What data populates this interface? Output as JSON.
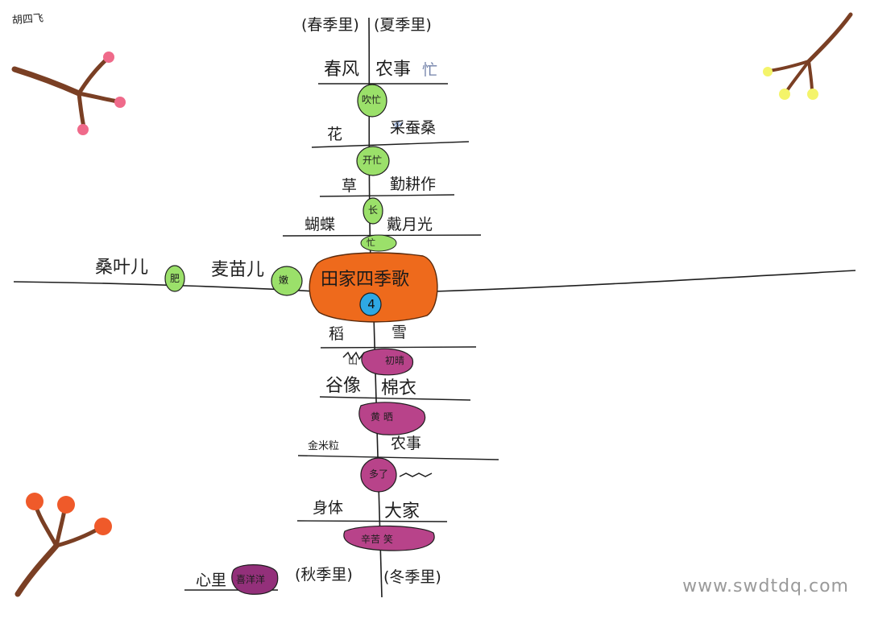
{
  "author": "胡四飞",
  "center": {
    "title": "田家四季歌",
    "number": "4"
  },
  "season_headers": {
    "spring": "(春季里)",
    "summer": "(夏季里)",
    "autumn": "(秋季里)",
    "winter": "(冬季里)"
  },
  "upper": {
    "row1": {
      "left": "春风",
      "right": "农事",
      "mark": "忙"
    },
    "blob1": "吹忙",
    "row2": {
      "left": "花",
      "right": "采蚕桑"
    },
    "blob2": "开忙",
    "row3": {
      "left": "草",
      "right": "勤耕作"
    },
    "blob3": "长",
    "row4": {
      "left": "蝴蝶",
      "right": "戴月光"
    },
    "blob4": "忙"
  },
  "horizontal": {
    "item1": {
      "text": "桑叶儿",
      "blob": "肥"
    },
    "item2": {
      "text": "麦苗儿",
      "blob": "嫩"
    }
  },
  "lower": {
    "row1": {
      "left": "稻",
      "right": "雪"
    },
    "blob1": {
      "left": "山",
      "right": "初晴"
    },
    "row2": {
      "left": "谷像",
      "right": "棉衣"
    },
    "blob2": "黄 晒",
    "row3": {
      "left": "金米粒",
      "right": "农事"
    },
    "blob3": "多了",
    "row4": {
      "left": "身体",
      "right": "大家"
    },
    "blob4": "辛苦 笑",
    "row5": {
      "left": "心里",
      "blob": "喜洋洋"
    }
  },
  "watermark": "www.swdtdq.com",
  "colors": {
    "center_fill": "#ee6a1c",
    "center_number_fill": "#2ea8e4",
    "spring_summer_fill": "#9be06a",
    "autumn_winter_fill": "#b8438a",
    "autumn_winter_fill_dark": "#93307a",
    "branch": "#7a3f24",
    "blossom_red": "#ef6a8a",
    "blossom_orange": "#ef5a2a",
    "blossom_yellow": "#f4f46a"
  }
}
